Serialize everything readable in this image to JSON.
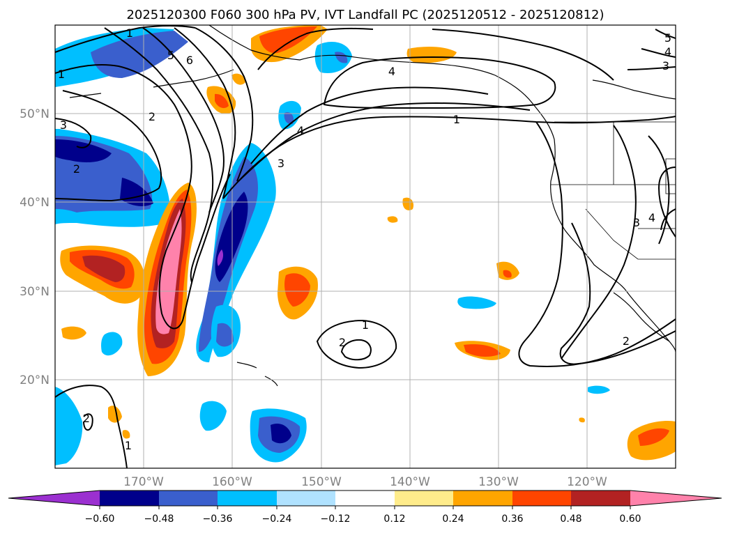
{
  "title": "2025120300 F060 300 hPa PV, IVT Landfall PC (2025120512 - 2025120812)",
  "lon_ticks": [
    "170°W",
    "160°W",
    "150°W",
    "140°W",
    "130°W",
    "120°W"
  ],
  "lat_ticks": [
    "50°N",
    "40°N",
    "30°N",
    "20°N"
  ],
  "colorbar": {
    "ticks": [
      "−0.60",
      "−0.48",
      "−0.36",
      "−0.24",
      "−0.12",
      "0.12",
      "0.24",
      "0.36",
      "0.48",
      "0.60"
    ],
    "colors": [
      "#9b30d0",
      "#00008b",
      "#3a5fcd",
      "#00bfff",
      "#b0e2ff",
      "#ffffff",
      "#ffec8b",
      "#ffa500",
      "#ff4500",
      "#b22222",
      "#ff82ab"
    ]
  },
  "palette": {
    "pos_light": "#ffa500",
    "pos_mid": "#ff4500",
    "pos_dark": "#b22222",
    "pos_max": "#ff82ab",
    "neg_light": "#00bfff",
    "neg_mid": "#3a5fcd",
    "neg_dark": "#00008b",
    "neg_max": "#9b30d0"
  },
  "contour_labels": [
    "1",
    "5",
    "6",
    "2",
    "3",
    "2",
    "4",
    "3",
    "4",
    "1",
    "5",
    "4",
    "3",
    "1",
    "2",
    "3",
    "4",
    "2",
    "2",
    "1"
  ],
  "map": {
    "lon_range": [
      -180,
      -110
    ],
    "lat_range": [
      10,
      60
    ],
    "projection": "PlateCarree"
  }
}
